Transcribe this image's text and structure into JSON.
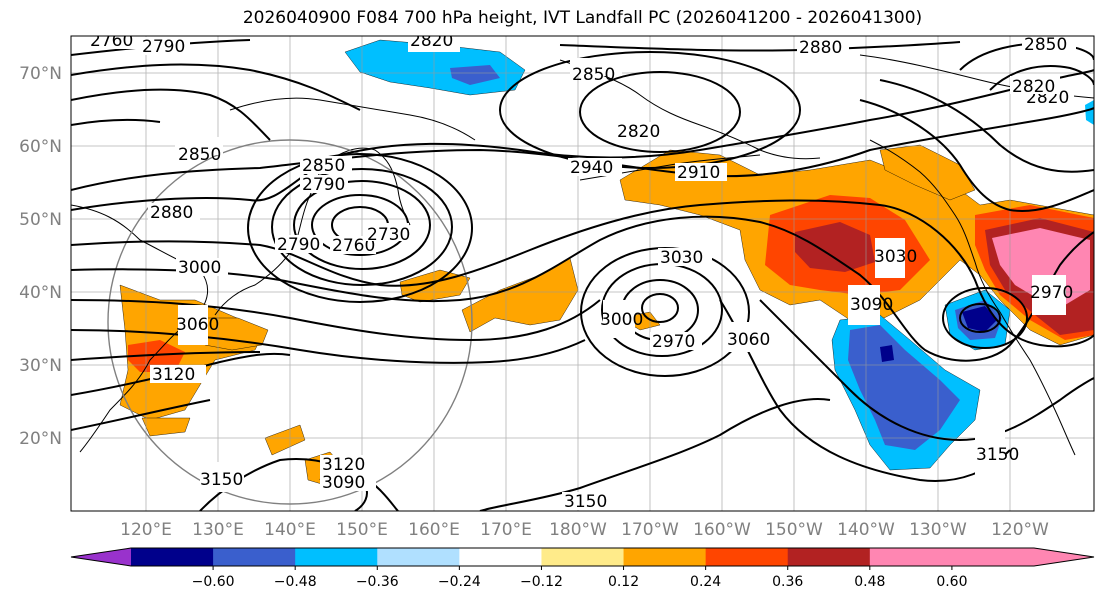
{
  "title": "2026040900 F084 700 hPa height, IVT Landfall PC (2026041200 - 2026041300)",
  "lat_labels": [
    "70°N",
    "60°N",
    "50°N",
    "40°N",
    "30°N",
    "20°N"
  ],
  "lon_labels": [
    "120°E",
    "130°E",
    "140°E",
    "150°E",
    "160°E",
    "170°E",
    "180°W",
    "170°W",
    "160°W",
    "150°W",
    "140°W",
    "130°W",
    "120°W"
  ],
  "contour_labels": [
    "2760",
    "2790",
    "2790",
    "2820",
    "2820",
    "2850",
    "2850",
    "2850",
    "2880",
    "2880",
    "2910",
    "2940",
    "2760",
    "2730",
    "2790",
    "2820",
    "3000",
    "3030",
    "3030",
    "3000",
    "2970",
    "3060",
    "3090",
    "3060",
    "3120",
    "3150",
    "3120",
    "3090",
    "3150",
    "3150",
    "2970",
    "2850",
    "2820"
  ],
  "colorbar": {
    "ticks": [
      "−0.60",
      "−0.48",
      "−0.36",
      "−0.24",
      "−0.12",
      "0.12",
      "0.24",
      "0.36",
      "0.48",
      "0.60"
    ],
    "colors": [
      "#9932cc",
      "#00008b",
      "#3a5fcd",
      "#00bfff",
      "#b0e0ff",
      "#ffffff",
      "#ffeb8a",
      "#ffa500",
      "#ff4500",
      "#b22222",
      "#ff86b2",
      "#ff86b2"
    ]
  },
  "palette": {
    "neg_strong": "#00008b",
    "neg_mid": "#3a5fcd",
    "neg_light": "#00bfff",
    "pos_light": "#ffa500",
    "pos_mid": "#ff4500",
    "pos_dark": "#b22222",
    "pos_max": "#ff86b2"
  }
}
